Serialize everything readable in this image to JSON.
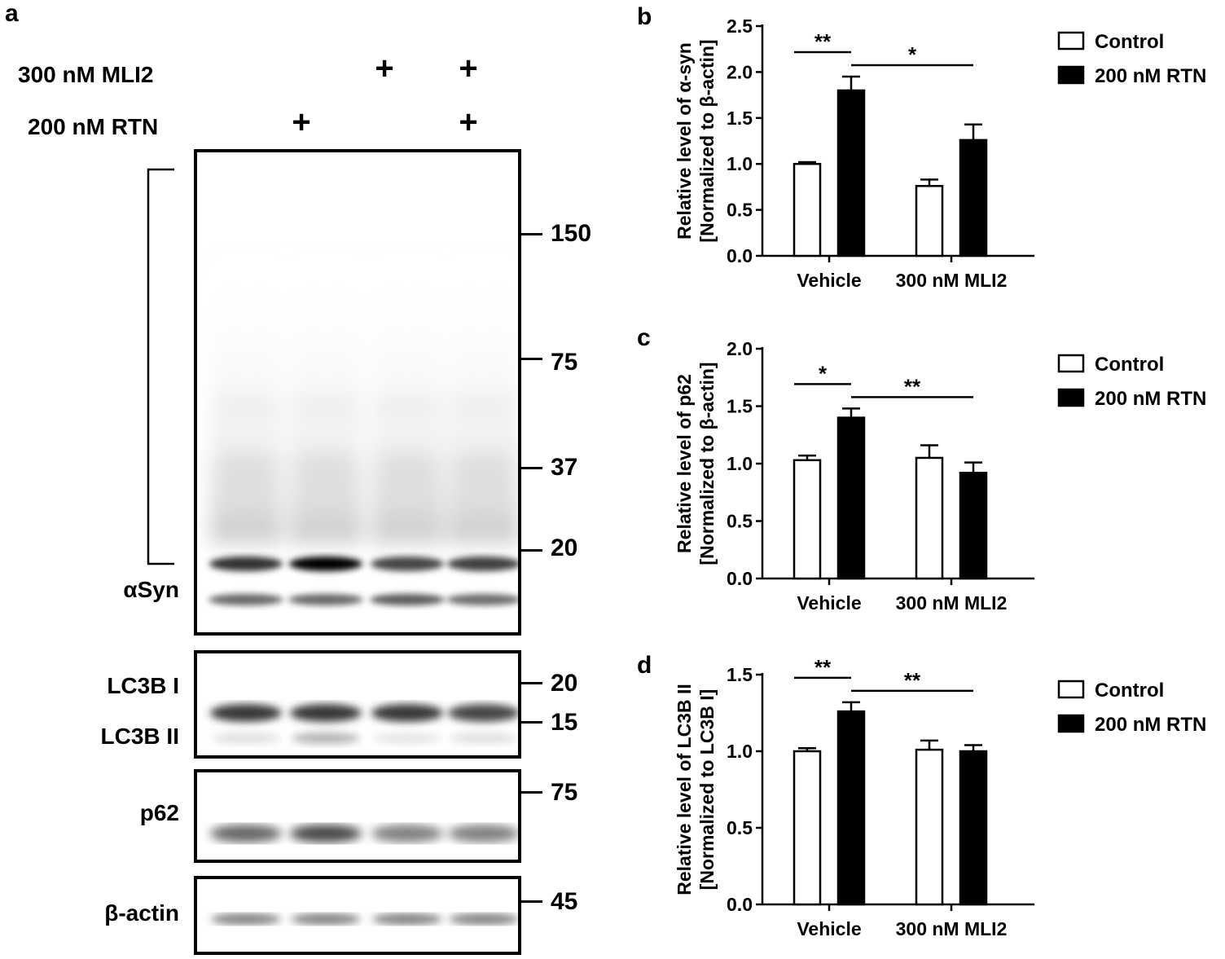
{
  "panel_letters": {
    "a": "a",
    "b": "b",
    "c": "c",
    "d": "d"
  },
  "western_blot": {
    "conditions": [
      {
        "label": "300 nM MLI2",
        "lanes": [
          "",
          "",
          "+",
          "+"
        ]
      },
      {
        "label": "200 nM RTN",
        "lanes": [
          "",
          "+",
          "",
          "+"
        ]
      }
    ],
    "blots": [
      {
        "name": "alpha-syn",
        "labels": [
          "αSyn"
        ],
        "markers": [
          "150",
          "75",
          "37",
          "20"
        ]
      },
      {
        "name": "lc3b",
        "labels": [
          "LC3B I",
          "LC3B II"
        ],
        "markers": [
          "20",
          "15"
        ]
      },
      {
        "name": "p62",
        "labels": [
          "p62"
        ],
        "markers": [
          "75"
        ]
      },
      {
        "name": "beta-actin",
        "labels": [
          "β-actin"
        ],
        "markers": [
          "45"
        ]
      }
    ],
    "band_intensity": {
      "alpha_syn_monomer": [
        0.8,
        1.0,
        0.72,
        0.75
      ],
      "alpha_syn_lower": [
        0.6,
        0.6,
        0.65,
        0.58
      ],
      "lc3b_i": [
        0.78,
        0.78,
        0.78,
        0.72
      ],
      "lc3b_ii": [
        0.12,
        0.3,
        0.1,
        0.12
      ],
      "p62": [
        0.6,
        0.72,
        0.5,
        0.5
      ],
      "beta_actin": [
        0.5,
        0.5,
        0.5,
        0.5
      ]
    }
  },
  "chart_data": [
    {
      "panel": "b",
      "type": "bar",
      "ylabel_line1": "Relative level of α-syn",
      "ylabel_line2": "[Normalized to β-actin]",
      "categories": [
        "Vehicle",
        "300 nM MLI2"
      ],
      "series": [
        {
          "name": "Control",
          "values": [
            1.0,
            0.76
          ],
          "errors": [
            0.02,
            0.07
          ],
          "fill": "#ffffff"
        },
        {
          "name": "200 nM RTN",
          "values": [
            1.8,
            1.26
          ],
          "errors": [
            0.15,
            0.17
          ],
          "fill": "#000000"
        }
      ],
      "ylim": [
        0,
        2.5
      ],
      "yticks": [
        "0.0",
        "0.5",
        "1.0",
        "1.5",
        "2.0",
        "2.5"
      ],
      "annotations": [
        "**",
        "*"
      ],
      "legend_position": "right"
    },
    {
      "panel": "c",
      "type": "bar",
      "ylabel_line1": "Relative level of p62",
      "ylabel_line2": "[Normalized to β-actin]",
      "categories": [
        "Vehicle",
        "300 nM MLI2"
      ],
      "series": [
        {
          "name": "Control",
          "values": [
            1.03,
            1.05
          ],
          "errors": [
            0.04,
            0.11
          ],
          "fill": "#ffffff"
        },
        {
          "name": "200 nM RTN",
          "values": [
            1.4,
            0.92
          ],
          "errors": [
            0.08,
            0.09
          ],
          "fill": "#000000"
        }
      ],
      "ylim": [
        0,
        2.0
      ],
      "yticks": [
        "0.0",
        "0.5",
        "1.0",
        "1.5",
        "2.0"
      ],
      "annotations": [
        "*",
        "**"
      ],
      "legend_position": "right"
    },
    {
      "panel": "d",
      "type": "bar",
      "ylabel_line1": "Relative level of LC3B II",
      "ylabel_line2": "[Normalized to LC3B I]",
      "categories": [
        "Vehicle",
        "300 nM MLI2"
      ],
      "series": [
        {
          "name": "Control",
          "values": [
            1.0,
            1.01
          ],
          "errors": [
            0.02,
            0.06
          ],
          "fill": "#ffffff"
        },
        {
          "name": "200 nM RTN",
          "values": [
            1.26,
            1.0
          ],
          "errors": [
            0.06,
            0.04
          ],
          "fill": "#000000"
        }
      ],
      "ylim": [
        0,
        1.5
      ],
      "yticks": [
        "0.0",
        "0.5",
        "1.0",
        "1.5"
      ],
      "annotations": [
        "**",
        "**"
      ],
      "legend_position": "right"
    }
  ]
}
